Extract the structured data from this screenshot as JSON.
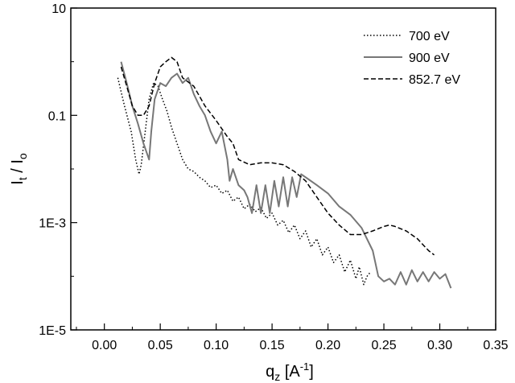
{
  "chart_data": {
    "type": "line",
    "title": "",
    "xlabel": "q",
    "xlabel_sub": "z",
    "xlabel_unit_prefix": " [A",
    "xlabel_unit_sup": "-1",
    "xlabel_unit_suffix": "]",
    "ylabel_base1": "I",
    "ylabel_sub1": "t",
    "ylabel_sep": " / I",
    "ylabel_sub2": "o",
    "xlim": [
      -0.03,
      0.35
    ],
    "ylim": [
      1e-05,
      10
    ],
    "yscale": "log",
    "x_ticks": [
      0.0,
      0.05,
      0.1,
      0.15,
      0.2,
      0.25,
      0.3,
      0.35
    ],
    "x_tick_labels": [
      "0.00",
      "0.05",
      "0.10",
      "0.15",
      "0.20",
      "0.25",
      "0.30",
      "0.35"
    ],
    "y_ticks": [
      1e-05,
      0.001,
      0.1,
      10
    ],
    "y_tick_labels": [
      "1E-5",
      "1E-3",
      "0.1",
      "10"
    ],
    "legend_position": "top-right",
    "series": [
      {
        "name": "700 eV",
        "style": "dotted",
        "color": "#000000",
        "x": [
          0.012,
          0.018,
          0.024,
          0.028,
          0.031,
          0.033,
          0.036,
          0.04,
          0.044,
          0.048,
          0.052,
          0.056,
          0.06,
          0.065,
          0.07,
          0.075,
          0.08,
          0.085,
          0.09,
          0.095,
          0.1,
          0.105,
          0.11,
          0.115,
          0.12,
          0.125,
          0.13,
          0.135,
          0.14,
          0.145,
          0.15,
          0.155,
          0.16,
          0.165,
          0.17,
          0.175,
          0.18,
          0.185,
          0.19,
          0.195,
          0.2,
          0.205,
          0.21,
          0.215,
          0.22,
          0.225,
          0.228,
          0.232,
          0.235,
          0.238
        ],
        "y": [
          0.5,
          0.15,
          0.05,
          0.015,
          0.008,
          0.012,
          0.04,
          0.2,
          0.4,
          0.35,
          0.2,
          0.12,
          0.06,
          0.03,
          0.015,
          0.01,
          0.009,
          0.007,
          0.006,
          0.0045,
          0.005,
          0.0035,
          0.004,
          0.0025,
          0.003,
          0.0018,
          0.0022,
          0.0016,
          0.0019,
          0.0012,
          0.0015,
          0.0009,
          0.0011,
          0.00065,
          0.0009,
          0.0005,
          0.0007,
          0.00035,
          0.0005,
          0.00025,
          0.00035,
          0.00018,
          0.00025,
          0.00012,
          0.0002,
          9e-05,
          0.00015,
          7e-05,
          0.0001,
          0.00012
        ]
      },
      {
        "name": "900 eV",
        "style": "solid",
        "color": "#777777",
        "x": [
          0.015,
          0.02,
          0.025,
          0.03,
          0.035,
          0.04,
          0.042,
          0.045,
          0.05,
          0.055,
          0.06,
          0.065,
          0.07,
          0.075,
          0.08,
          0.085,
          0.09,
          0.095,
          0.1,
          0.105,
          0.11,
          0.112,
          0.115,
          0.12,
          0.125,
          0.128,
          0.132,
          0.136,
          0.14,
          0.144,
          0.148,
          0.152,
          0.156,
          0.16,
          0.164,
          0.168,
          0.172,
          0.176,
          0.18,
          0.19,
          0.2,
          0.21,
          0.22,
          0.23,
          0.24,
          0.245,
          0.25,
          0.255,
          0.26,
          0.265,
          0.27,
          0.275,
          0.28,
          0.285,
          0.29,
          0.295,
          0.3,
          0.305,
          0.31
        ],
        "y": [
          1.0,
          0.4,
          0.15,
          0.07,
          0.03,
          0.015,
          0.05,
          0.2,
          0.4,
          0.35,
          0.5,
          0.6,
          0.4,
          0.5,
          0.25,
          0.15,
          0.1,
          0.05,
          0.03,
          0.05,
          0.015,
          0.006,
          0.01,
          0.005,
          0.004,
          0.003,
          0.0015,
          0.005,
          0.0015,
          0.005,
          0.0015,
          0.006,
          0.002,
          0.007,
          0.002,
          0.007,
          0.003,
          0.008,
          0.007,
          0.005,
          0.0035,
          0.002,
          0.0014,
          0.0008,
          0.0003,
          0.0001,
          8e-05,
          9e-05,
          7e-05,
          0.00012,
          7e-05,
          0.00013,
          8e-05,
          0.00012,
          8e-05,
          0.00012,
          9e-05,
          0.00011,
          6e-05
        ]
      },
      {
        "name": "852.7 eV",
        "style": "dashed",
        "color": "#000000",
        "x": [
          0.015,
          0.02,
          0.025,
          0.03,
          0.035,
          0.04,
          0.045,
          0.05,
          0.055,
          0.06,
          0.065,
          0.07,
          0.08,
          0.09,
          0.1,
          0.11,
          0.115,
          0.12,
          0.13,
          0.14,
          0.15,
          0.16,
          0.17,
          0.18,
          0.19,
          0.2,
          0.21,
          0.22,
          0.23,
          0.24,
          0.25,
          0.255,
          0.26,
          0.27,
          0.28,
          0.29,
          0.295
        ],
        "y": [
          0.8,
          0.35,
          0.15,
          0.1,
          0.1,
          0.15,
          0.4,
          0.8,
          1.0,
          1.2,
          1.0,
          0.5,
          0.35,
          0.15,
          0.08,
          0.04,
          0.03,
          0.015,
          0.012,
          0.013,
          0.013,
          0.012,
          0.009,
          0.006,
          0.003,
          0.0015,
          0.0009,
          0.0006,
          0.0006,
          0.0007,
          0.00085,
          0.0009,
          0.00085,
          0.0007,
          0.0005,
          0.0003,
          0.00025
        ]
      }
    ]
  }
}
